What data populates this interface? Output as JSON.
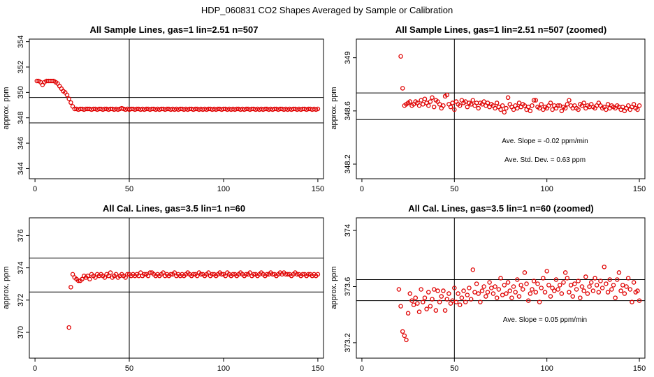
{
  "figure": {
    "title": "HDP_060831  CO2 Shapes Averaged by Sample or Calibration",
    "point_color": "#e00000",
    "frame_color": "#000000",
    "background": "#ffffff"
  },
  "chart_data": [
    {
      "type": "scatter",
      "title": "All Sample Lines, gas=1 lin=2.51 n=507",
      "xlabel": "",
      "ylabel": "approx. ppm",
      "xlim": [
        -3,
        153
      ],
      "ylim": [
        343.2,
        354.2
      ],
      "xticks": [
        0,
        50,
        100,
        150
      ],
      "yticks": [
        344,
        346,
        348,
        350,
        352,
        354
      ],
      "vlines": [
        50
      ],
      "hlines": [
        349.6,
        347.6
      ],
      "annotations": [],
      "x": [
        1,
        2,
        3,
        4,
        5,
        6,
        7,
        8,
        9,
        10,
        11,
        12,
        13,
        14,
        15,
        16,
        17,
        18,
        19,
        20,
        21,
        22,
        23,
        24,
        25,
        26,
        27,
        28,
        29,
        30,
        31,
        32,
        33,
        34,
        35,
        36,
        37,
        38,
        39,
        40,
        41,
        42,
        43,
        44,
        45,
        46,
        47,
        48,
        49,
        50,
        51,
        52,
        53,
        54,
        55,
        56,
        57,
        58,
        59,
        60,
        61,
        62,
        63,
        64,
        65,
        66,
        67,
        68,
        69,
        70,
        71,
        72,
        73,
        74,
        75,
        76,
        77,
        78,
        79,
        80,
        81,
        82,
        83,
        84,
        85,
        86,
        87,
        88,
        89,
        90,
        91,
        92,
        93,
        94,
        95,
        96,
        97,
        98,
        99,
        100,
        101,
        102,
        103,
        104,
        105,
        106,
        107,
        108,
        109,
        110,
        111,
        112,
        113,
        114,
        115,
        116,
        117,
        118,
        119,
        120,
        121,
        122,
        123,
        124,
        125,
        126,
        127,
        128,
        129,
        130,
        131,
        132,
        133,
        134,
        135,
        136,
        137,
        138,
        139,
        140,
        141,
        142,
        143,
        144,
        145,
        146,
        147,
        148,
        149,
        150
      ],
      "y": [
        350.9,
        350.9,
        350.8,
        350.6,
        350.8,
        350.9,
        350.9,
        350.9,
        350.9,
        350.9,
        350.8,
        350.7,
        350.5,
        350.3,
        350.1,
        350.0,
        349.8,
        349.5,
        349.2,
        348.9,
        348.7,
        348.7,
        348.65,
        348.7,
        348.7,
        348.65,
        348.7,
        348.7,
        348.7,
        348.65,
        348.7,
        348.7,
        348.65,
        348.7,
        348.7,
        348.65,
        348.7,
        348.7,
        348.65,
        348.7,
        348.7,
        348.65,
        348.7,
        348.65,
        348.7,
        348.75,
        348.7,
        348.65,
        348.7,
        348.65,
        348.7,
        348.7,
        348.65,
        348.7,
        348.7,
        348.65,
        348.7,
        348.65,
        348.7,
        348.7,
        348.65,
        348.7,
        348.7,
        348.65,
        348.7,
        348.65,
        348.7,
        348.7,
        348.65,
        348.7,
        348.7,
        348.65,
        348.7,
        348.65,
        348.7,
        348.65,
        348.7,
        348.7,
        348.65,
        348.7,
        348.65,
        348.7,
        348.7,
        348.65,
        348.7,
        348.7,
        348.65,
        348.7,
        348.65,
        348.7,
        348.65,
        348.7,
        348.7,
        348.65,
        348.7,
        348.65,
        348.7,
        348.7,
        348.65,
        348.7,
        348.7,
        348.65,
        348.7,
        348.65,
        348.7,
        348.65,
        348.7,
        348.7,
        348.65,
        348.7,
        348.65,
        348.7,
        348.7,
        348.65,
        348.7,
        348.7,
        348.65,
        348.7,
        348.65,
        348.7,
        348.65,
        348.7,
        348.7,
        348.65,
        348.7,
        348.65,
        348.7,
        348.7,
        348.65,
        348.7,
        348.7,
        348.65,
        348.7,
        348.65,
        348.7,
        348.65,
        348.7,
        348.7,
        348.65,
        348.7,
        348.65,
        348.7,
        348.7,
        348.65,
        348.7,
        348.7,
        348.65,
        348.7,
        348.65,
        348.7
      ]
    },
    {
      "type": "scatter",
      "title": "All Sample Lines, gas=1 lin=2.51 n=507 (zoomed)",
      "xlabel": "",
      "ylabel": "approx. ppm",
      "xlim": [
        -3,
        153
      ],
      "ylim": [
        348.09,
        349.14
      ],
      "xticks": [
        0,
        50,
        100,
        150
      ],
      "yticks": [
        348.2,
        348.6,
        349.0
      ],
      "vlines": [
        50
      ],
      "hlines": [
        348.735,
        348.535
      ],
      "annotations": [
        "Ave. Slope =  -0.02  ppm/min",
        "Ave. Std. Dev. =  0.63  ppm"
      ],
      "x": [
        21,
        22,
        23,
        24,
        25,
        26,
        27,
        28,
        29,
        30,
        31,
        32,
        33,
        34,
        35,
        36,
        37,
        38,
        39,
        40,
        41,
        42,
        43,
        44,
        45,
        46,
        47,
        48,
        49,
        50,
        51,
        52,
        53,
        54,
        55,
        56,
        57,
        58,
        59,
        60,
        61,
        62,
        63,
        64,
        65,
        66,
        67,
        68,
        69,
        70,
        71,
        72,
        73,
        74,
        75,
        76,
        77,
        78,
        79,
        80,
        81,
        82,
        83,
        84,
        85,
        86,
        87,
        88,
        89,
        90,
        91,
        92,
        93,
        94,
        95,
        96,
        97,
        98,
        99,
        100,
        101,
        102,
        103,
        104,
        105,
        106,
        107,
        108,
        109,
        110,
        111,
        112,
        113,
        114,
        115,
        116,
        117,
        118,
        119,
        120,
        121,
        122,
        123,
        124,
        125,
        126,
        127,
        128,
        129,
        130,
        131,
        132,
        133,
        134,
        135,
        136,
        137,
        138,
        139,
        140,
        141,
        142,
        143,
        144,
        145,
        146,
        147,
        148,
        149,
        150
      ],
      "y": [
        349.01,
        348.77,
        348.64,
        348.65,
        348.66,
        348.67,
        348.64,
        348.65,
        348.67,
        348.66,
        348.64,
        348.68,
        348.65,
        348.69,
        348.66,
        348.64,
        348.67,
        348.7,
        348.63,
        348.68,
        348.67,
        348.65,
        348.62,
        348.64,
        348.71,
        348.72,
        348.65,
        348.63,
        348.66,
        348.61,
        348.67,
        348.65,
        348.64,
        348.68,
        348.66,
        348.67,
        348.63,
        348.66,
        348.65,
        348.68,
        348.64,
        348.66,
        348.62,
        348.66,
        348.65,
        348.67,
        348.64,
        348.66,
        348.63,
        348.65,
        348.64,
        348.62,
        348.66,
        348.63,
        348.61,
        348.64,
        348.59,
        348.62,
        348.7,
        348.65,
        348.63,
        348.61,
        348.64,
        348.62,
        348.66,
        348.63,
        348.65,
        348.64,
        348.61,
        348.63,
        348.6,
        348.64,
        348.68,
        348.68,
        348.63,
        348.62,
        348.65,
        348.61,
        348.63,
        348.62,
        348.64,
        348.66,
        348.61,
        348.64,
        348.62,
        348.64,
        348.64,
        348.6,
        348.63,
        348.62,
        348.65,
        348.68,
        348.64,
        348.62,
        348.64,
        348.62,
        348.61,
        348.65,
        348.64,
        348.66,
        348.62,
        348.64,
        348.63,
        348.65,
        348.63,
        348.62,
        348.64,
        348.66,
        348.64,
        348.62,
        348.63,
        348.61,
        348.65,
        348.62,
        348.64,
        348.63,
        348.62,
        348.64,
        348.63,
        348.61,
        348.63,
        348.6,
        348.62,
        348.64,
        348.61,
        348.63,
        348.65,
        348.62,
        348.61,
        348.64
      ]
    },
    {
      "type": "scatter",
      "title": "All Cal. Lines, gas=3.5 lin=1 n=60",
      "xlabel": "",
      "ylabel": "approx. ppm",
      "xlim": [
        -3,
        153
      ],
      "ylim": [
        368.4,
        377.1
      ],
      "xticks": [
        0,
        50,
        100,
        150
      ],
      "yticks": [
        370,
        372,
        374,
        376
      ],
      "vlines": [
        50
      ],
      "hlines": [
        374.6,
        372.5
      ],
      "annotations": [],
      "x": [
        18,
        19,
        20,
        21,
        22,
        23,
        24,
        25,
        26,
        27,
        28,
        29,
        30,
        31,
        32,
        33,
        34,
        35,
        36,
        37,
        38,
        39,
        40,
        41,
        42,
        43,
        44,
        45,
        46,
        47,
        48,
        49,
        50,
        51,
        52,
        53,
        54,
        55,
        56,
        57,
        58,
        59,
        60,
        61,
        62,
        63,
        64,
        65,
        66,
        67,
        68,
        69,
        70,
        71,
        72,
        73,
        74,
        75,
        76,
        77,
        78,
        79,
        80,
        81,
        82,
        83,
        84,
        85,
        86,
        87,
        88,
        89,
        90,
        91,
        92,
        93,
        94,
        95,
        96,
        97,
        98,
        99,
        100,
        101,
        102,
        103,
        104,
        105,
        106,
        107,
        108,
        109,
        110,
        111,
        112,
        113,
        114,
        115,
        116,
        117,
        118,
        119,
        120,
        121,
        122,
        123,
        124,
        125,
        126,
        127,
        128,
        129,
        130,
        131,
        132,
        133,
        134,
        135,
        136,
        137,
        138,
        139,
        140,
        141,
        142,
        143,
        144,
        145,
        146,
        147,
        148,
        149,
        150
      ],
      "y": [
        370.3,
        372.8,
        373.6,
        373.4,
        373.3,
        373.2,
        373.2,
        373.3,
        373.5,
        373.4,
        373.5,
        373.3,
        373.6,
        373.5,
        373.4,
        373.6,
        373.5,
        373.6,
        373.5,
        373.4,
        373.6,
        373.5,
        373.7,
        373.4,
        373.5,
        373.6,
        373.4,
        373.5,
        373.6,
        373.5,
        373.4,
        373.6,
        373.6,
        373.5,
        373.6,
        373.5,
        373.6,
        373.5,
        373.7,
        373.5,
        373.6,
        373.6,
        373.5,
        373.7,
        373.7,
        373.6,
        373.5,
        373.6,
        373.5,
        373.6,
        373.7,
        373.5,
        373.6,
        373.5,
        373.6,
        373.6,
        373.7,
        373.5,
        373.6,
        373.5,
        373.6,
        373.5,
        373.6,
        373.7,
        373.6,
        373.5,
        373.6,
        373.6,
        373.5,
        373.7,
        373.6,
        373.6,
        373.5,
        373.6,
        373.7,
        373.5,
        373.6,
        373.6,
        373.5,
        373.6,
        373.7,
        373.6,
        373.6,
        373.5,
        373.7,
        373.6,
        373.5,
        373.6,
        373.6,
        373.5,
        373.6,
        373.7,
        373.6,
        373.5,
        373.6,
        373.6,
        373.7,
        373.5,
        373.6,
        373.6,
        373.5,
        373.6,
        373.7,
        373.6,
        373.5,
        373.6,
        373.6,
        373.7,
        373.6,
        373.6,
        373.5,
        373.6,
        373.7,
        373.6,
        373.7,
        373.6,
        373.6,
        373.6,
        373.5,
        373.6,
        373.7,
        373.6,
        373.6,
        373.5,
        373.6,
        373.6,
        373.5,
        373.6,
        373.6,
        373.5,
        373.6,
        373.5,
        373.6
      ]
    },
    {
      "type": "scatter",
      "title": "All Cal. Lines, gas=3.5 lin=1 n=60 (zoomed)",
      "xlabel": "",
      "ylabel": "approx. ppm",
      "xlim": [
        -3,
        153
      ],
      "ylim": [
        373.09,
        374.09
      ],
      "xticks": [
        0,
        50,
        100,
        150
      ],
      "yticks": [
        373.2,
        373.6,
        374.0
      ],
      "vlines": [
        50
      ],
      "hlines": [
        373.65,
        373.5
      ],
      "annotations": [
        "Ave. Slope =  0.05  ppm/min"
      ],
      "x": [
        20,
        21,
        22,
        23,
        24,
        25,
        26,
        27,
        28,
        29,
        30,
        31,
        32,
        33,
        34,
        35,
        36,
        37,
        38,
        39,
        40,
        41,
        42,
        43,
        44,
        45,
        46,
        47,
        48,
        49,
        50,
        51,
        52,
        53,
        54,
        55,
        56,
        57,
        58,
        59,
        60,
        61,
        62,
        63,
        64,
        65,
        66,
        67,
        68,
        69,
        70,
        71,
        72,
        73,
        74,
        75,
        76,
        77,
        78,
        79,
        80,
        81,
        82,
        83,
        84,
        85,
        86,
        87,
        88,
        89,
        90,
        91,
        92,
        93,
        94,
        95,
        96,
        97,
        98,
        99,
        100,
        101,
        102,
        103,
        104,
        105,
        106,
        107,
        108,
        109,
        110,
        111,
        112,
        113,
        114,
        115,
        116,
        117,
        118,
        119,
        120,
        121,
        122,
        123,
        124,
        125,
        126,
        127,
        128,
        129,
        130,
        131,
        132,
        133,
        134,
        135,
        136,
        137,
        138,
        139,
        140,
        141,
        142,
        143,
        144,
        145,
        146,
        147,
        148,
        149,
        150
      ],
      "y": [
        373.58,
        373.46,
        373.28,
        373.25,
        373.22,
        373.41,
        373.55,
        373.5,
        373.47,
        373.52,
        373.48,
        373.42,
        373.58,
        373.49,
        373.52,
        373.44,
        373.56,
        373.46,
        373.51,
        373.58,
        373.43,
        373.57,
        373.49,
        373.53,
        373.57,
        373.43,
        373.51,
        373.55,
        373.48,
        373.5,
        373.59,
        373.49,
        373.55,
        373.47,
        373.52,
        373.57,
        373.49,
        373.54,
        373.59,
        373.51,
        373.72,
        373.56,
        373.62,
        373.55,
        373.49,
        373.57,
        373.6,
        373.53,
        373.56,
        373.63,
        373.59,
        373.55,
        373.6,
        373.52,
        373.58,
        373.66,
        373.54,
        373.61,
        373.55,
        373.63,
        373.57,
        373.52,
        373.6,
        373.56,
        373.65,
        373.53,
        373.61,
        373.58,
        373.7,
        373.62,
        373.5,
        373.55,
        373.58,
        373.64,
        373.56,
        373.62,
        373.49,
        373.59,
        373.66,
        373.56,
        373.71,
        373.61,
        373.53,
        373.59,
        373.57,
        373.65,
        373.58,
        373.61,
        373.55,
        373.63,
        373.7,
        373.66,
        373.56,
        373.61,
        373.53,
        373.62,
        373.58,
        373.64,
        373.52,
        373.6,
        373.57,
        373.67,
        373.55,
        373.6,
        373.63,
        373.57,
        373.66,
        373.61,
        373.56,
        373.64,
        373.59,
        373.74,
        373.62,
        373.56,
        373.65,
        373.58,
        373.61,
        373.52,
        373.65,
        373.7,
        373.57,
        373.61,
        373.55,
        373.6,
        373.66,
        373.58,
        373.49,
        373.63,
        373.56,
        373.57,
        373.5
      ]
    }
  ]
}
